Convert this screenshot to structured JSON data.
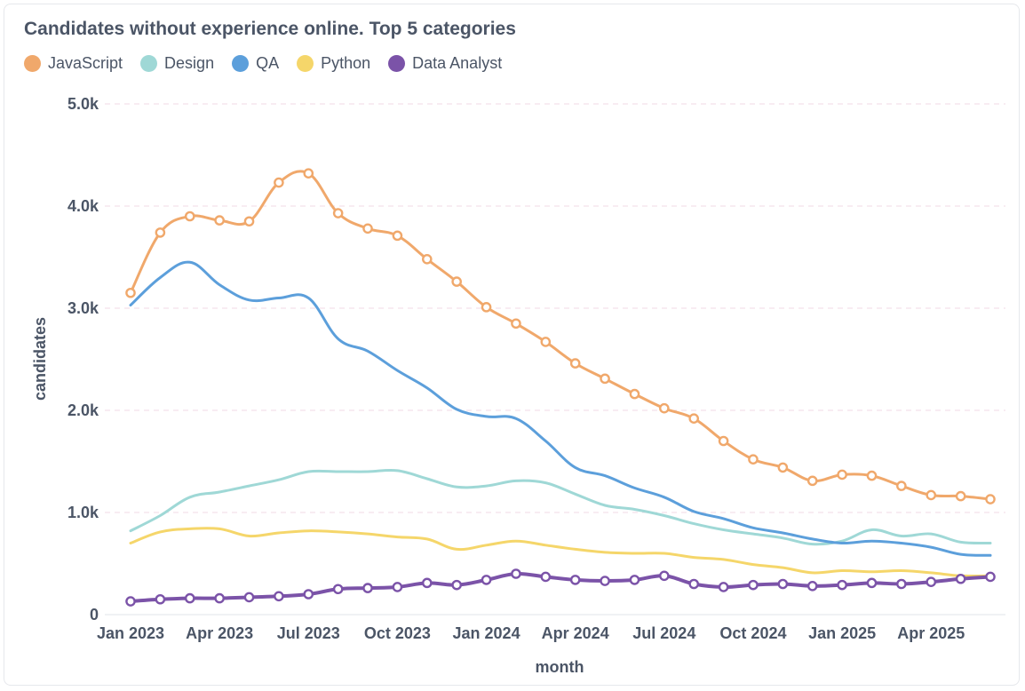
{
  "chart_data": {
    "type": "line",
    "title": "Candidates without experience online. Top 5 categories",
    "xlabel": "month",
    "ylabel": "candidates",
    "ylim": [
      0,
      5000
    ],
    "yticks": [
      0,
      1000,
      2000,
      3000,
      4000,
      5000
    ],
    "ytick_labels": [
      "0",
      "1.0k",
      "2.0k",
      "3.0k",
      "4.0k",
      "5.0k"
    ],
    "x": [
      "Jan 2023",
      "Feb 2023",
      "Mar 2023",
      "Apr 2023",
      "May 2023",
      "Jun 2023",
      "Jul 2023",
      "Aug 2023",
      "Sep 2023",
      "Oct 2023",
      "Nov 2023",
      "Dec 2023",
      "Jan 2024",
      "Feb 2024",
      "Mar 2024",
      "Apr 2024",
      "May 2024",
      "Jun 2024",
      "Jul 2024",
      "Aug 2024",
      "Sep 2024",
      "Oct 2024",
      "Nov 2024",
      "Dec 2024",
      "Jan 2025",
      "Feb 2025",
      "Mar 2025",
      "Apr 2025",
      "May 2025",
      "Jun 2025"
    ],
    "xtick_labels": [
      "Jan 2023",
      "Apr 2023",
      "Jul 2023",
      "Oct 2023",
      "Jan 2024",
      "Apr 2024",
      "Jul 2024",
      "Oct 2024",
      "Jan 2025",
      "Apr 2025"
    ],
    "grid": true,
    "legend_position": "top-left",
    "series": [
      {
        "name": "JavaScript",
        "color": "#f0a86b",
        "markers": true,
        "values": [
          3150,
          3740,
          3900,
          3860,
          3850,
          4230,
          4320,
          3930,
          3780,
          3710,
          3480,
          3260,
          3010,
          2850,
          2670,
          2460,
          2310,
          2160,
          2020,
          1920,
          1700,
          1520,
          1440,
          1310,
          1370,
          1360,
          1260,
          1170,
          1160,
          1130
        ]
      },
      {
        "name": "Design",
        "color": "#9fd8d6",
        "markers": false,
        "values": [
          820,
          970,
          1150,
          1200,
          1260,
          1320,
          1400,
          1400,
          1400,
          1410,
          1330,
          1250,
          1260,
          1310,
          1290,
          1180,
          1070,
          1030,
          970,
          890,
          830,
          790,
          750,
          690,
          720,
          830,
          770,
          790,
          710,
          700
        ]
      },
      {
        "name": "QA",
        "color": "#5c9fdb",
        "markers": false,
        "values": [
          3030,
          3300,
          3450,
          3230,
          3080,
          3100,
          3100,
          2700,
          2580,
          2390,
          2220,
          2010,
          1940,
          1920,
          1700,
          1440,
          1360,
          1240,
          1150,
          1010,
          940,
          850,
          800,
          740,
          700,
          720,
          700,
          660,
          590,
          580
        ]
      },
      {
        "name": "Python",
        "color": "#f5d66a",
        "markers": false,
        "values": [
          700,
          810,
          840,
          840,
          770,
          800,
          820,
          810,
          790,
          760,
          740,
          640,
          680,
          720,
          680,
          640,
          610,
          600,
          600,
          560,
          540,
          490,
          460,
          410,
          430,
          420,
          430,
          410,
          380,
          380
        ]
      },
      {
        "name": "Data Analyst",
        "color": "#7b53a8",
        "markers": true,
        "values": [
          130,
          150,
          160,
          160,
          170,
          180,
          200,
          250,
          260,
          270,
          310,
          290,
          340,
          400,
          370,
          340,
          330,
          340,
          380,
          300,
          270,
          290,
          300,
          280,
          290,
          310,
          300,
          320,
          350,
          370
        ]
      }
    ]
  }
}
